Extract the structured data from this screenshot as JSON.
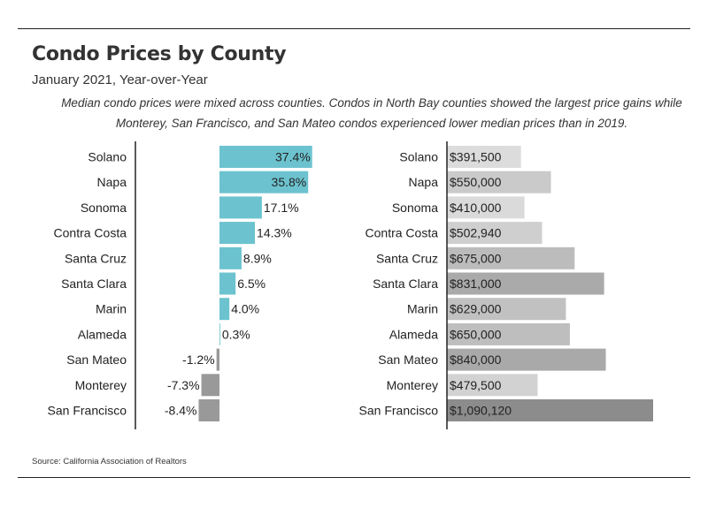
{
  "title": "Condo Prices by County",
  "subtitle": "January 2021, Year-over-Year",
  "description_line1": "Median condo prices were mixed across counties. Condos in North Bay counties showed the largest price gains while",
  "description_line2": "Monterey, San Francisco, and San Mateo condos experienced lower median prices than in 2019.",
  "source": "Source:  California Association of Realtors",
  "colors": {
    "pct_bar": "#6cc3cf",
    "pct_bar_negative": "#999999",
    "axis": "#222222",
    "price_bar_light": "#dcdcdc",
    "price_bar_dark": "#8a8a8a"
  },
  "chart_data": [
    {
      "type": "bar",
      "orientation": "horizontal",
      "categories": [
        "Solano",
        "Napa",
        "Sonoma",
        "Contra Costa",
        "Santa Cruz",
        "Santa Clara",
        "Marin",
        "Alameda",
        "San Mateo",
        "Monterey",
        "San Francisco"
      ],
      "values": [
        37.4,
        35.8,
        17.1,
        14.3,
        8.9,
        6.5,
        4.0,
        0.3,
        -1.2,
        -7.3,
        -8.4
      ],
      "labels": [
        "37.4%",
        "35.8%",
        "17.1%",
        "14.3%",
        "8.9%",
        "6.5%",
        "4.0%",
        "0.3%",
        "-1.2%",
        "-7.3%",
        "-8.4%"
      ]
    },
    {
      "type": "bar",
      "orientation": "horizontal",
      "categories": [
        "Solano",
        "Napa",
        "Sonoma",
        "Contra Costa",
        "Santa Cruz",
        "Santa Clara",
        "Marin",
        "Alameda",
        "San Mateo",
        "Monterey",
        "San Francisco"
      ],
      "values": [
        391500,
        550000,
        410000,
        502940,
        675000,
        831000,
        629000,
        650000,
        840000,
        479500,
        1090120
      ],
      "labels": [
        "$391,500",
        "$550,000",
        "$410,000",
        "$502,940",
        "$675,000",
        "$831,000",
        "$629,000",
        "$650,000",
        "$840,000",
        "$479,500",
        "$1,090,120"
      ]
    }
  ]
}
